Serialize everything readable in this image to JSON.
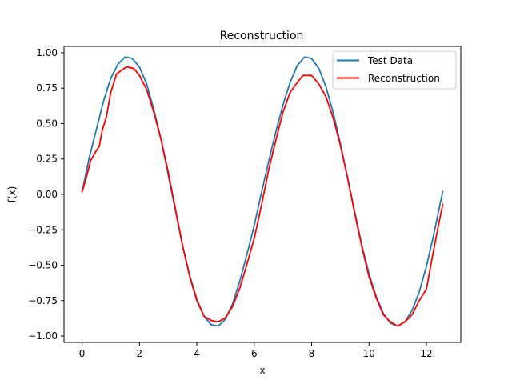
{
  "chart_data": {
    "type": "line",
    "title": "Reconstruction",
    "xlabel": "x",
    "ylabel": "f(x)",
    "xlim": [
      -0.63,
      13.2
    ],
    "ylim": [
      -1.045,
      1.045
    ],
    "xticks": [
      0,
      2,
      4,
      6,
      8,
      10,
      12
    ],
    "yticks": [
      -1.0,
      -0.75,
      -0.5,
      -0.25,
      0.0,
      0.25,
      0.5,
      0.75,
      1.0
    ],
    "xtick_labels": [
      "0",
      "2",
      "4",
      "6",
      "8",
      "10",
      "12"
    ],
    "ytick_labels": [
      "−1.00",
      "−0.75",
      "−0.50",
      "−0.25",
      "0.00",
      "0.25",
      "0.50",
      "0.75",
      "1.00"
    ],
    "grid": false,
    "legend_position": "top-right",
    "series": [
      {
        "name": "Test Data",
        "color": "#1f77b4",
        "points": [
          [
            0.0,
            0.02
          ],
          [
            0.25,
            0.26
          ],
          [
            0.5,
            0.46
          ],
          [
            0.75,
            0.66
          ],
          [
            1.0,
            0.82
          ],
          [
            1.25,
            0.92
          ],
          [
            1.5,
            0.97
          ],
          [
            1.75,
            0.96
          ],
          [
            2.0,
            0.9
          ],
          [
            2.25,
            0.78
          ],
          [
            2.5,
            0.6
          ],
          [
            2.75,
            0.39
          ],
          [
            3.0,
            0.14
          ],
          [
            3.25,
            -0.11
          ],
          [
            3.5,
            -0.36
          ],
          [
            3.75,
            -0.57
          ],
          [
            4.0,
            -0.74
          ],
          [
            4.25,
            -0.86
          ],
          [
            4.5,
            -0.92
          ],
          [
            4.75,
            -0.93
          ],
          [
            5.0,
            -0.88
          ],
          [
            5.25,
            -0.77
          ],
          [
            5.5,
            -0.61
          ],
          [
            5.75,
            -0.42
          ],
          [
            6.0,
            -0.22
          ],
          [
            6.25,
            0.01
          ],
          [
            6.5,
            0.23
          ],
          [
            6.75,
            0.44
          ],
          [
            7.0,
            0.63
          ],
          [
            7.25,
            0.79
          ],
          [
            7.5,
            0.91
          ],
          [
            7.75,
            0.97
          ],
          [
            8.0,
            0.96
          ],
          [
            8.25,
            0.89
          ],
          [
            8.5,
            0.76
          ],
          [
            8.75,
            0.58
          ],
          [
            9.0,
            0.36
          ],
          [
            9.25,
            0.12
          ],
          [
            9.5,
            -0.12
          ],
          [
            9.75,
            -0.36
          ],
          [
            10.0,
            -0.56
          ],
          [
            10.25,
            -0.72
          ],
          [
            10.5,
            -0.84
          ],
          [
            10.75,
            -0.91
          ],
          [
            11.0,
            -0.93
          ],
          [
            11.25,
            -0.9
          ],
          [
            11.5,
            -0.82
          ],
          [
            11.75,
            -0.69
          ],
          [
            12.0,
            -0.51
          ],
          [
            12.25,
            -0.29
          ],
          [
            12.57,
            0.02
          ]
        ]
      },
      {
        "name": "Reconstruction",
        "color": "#ff0000",
        "points": [
          [
            0.0,
            0.02
          ],
          [
            0.15,
            0.12
          ],
          [
            0.3,
            0.24
          ],
          [
            0.5,
            0.31
          ],
          [
            0.6,
            0.34
          ],
          [
            0.7,
            0.45
          ],
          [
            0.85,
            0.55
          ],
          [
            1.0,
            0.72
          ],
          [
            1.2,
            0.85
          ],
          [
            1.4,
            0.88
          ],
          [
            1.55,
            0.9
          ],
          [
            1.8,
            0.89
          ],
          [
            2.0,
            0.84
          ],
          [
            2.25,
            0.74
          ],
          [
            2.5,
            0.58
          ],
          [
            2.75,
            0.39
          ],
          [
            3.0,
            0.16
          ],
          [
            3.25,
            -0.1
          ],
          [
            3.5,
            -0.36
          ],
          [
            3.75,
            -0.58
          ],
          [
            4.0,
            -0.75
          ],
          [
            4.25,
            -0.86
          ],
          [
            4.5,
            -0.89
          ],
          [
            4.75,
            -0.9
          ],
          [
            5.0,
            -0.87
          ],
          [
            5.25,
            -0.79
          ],
          [
            5.5,
            -0.66
          ],
          [
            5.75,
            -0.49
          ],
          [
            6.0,
            -0.31
          ],
          [
            6.25,
            -0.08
          ],
          [
            6.5,
            0.17
          ],
          [
            6.75,
            0.38
          ],
          [
            7.0,
            0.58
          ],
          [
            7.25,
            0.72
          ],
          [
            7.5,
            0.79
          ],
          [
            7.7,
            0.84
          ],
          [
            7.85,
            0.84
          ],
          [
            8.0,
            0.84
          ],
          [
            8.25,
            0.78
          ],
          [
            8.5,
            0.69
          ],
          [
            8.75,
            0.54
          ],
          [
            9.0,
            0.35
          ],
          [
            9.25,
            0.12
          ],
          [
            9.5,
            -0.13
          ],
          [
            9.75,
            -0.37
          ],
          [
            10.0,
            -0.58
          ],
          [
            10.25,
            -0.73
          ],
          [
            10.5,
            -0.85
          ],
          [
            10.75,
            -0.9
          ],
          [
            11.0,
            -0.93
          ],
          [
            11.25,
            -0.9
          ],
          [
            11.5,
            -0.85
          ],
          [
            11.75,
            -0.75
          ],
          [
            12.0,
            -0.67
          ],
          [
            12.2,
            -0.45
          ],
          [
            12.4,
            -0.24
          ],
          [
            12.57,
            -0.07
          ]
        ]
      }
    ]
  }
}
